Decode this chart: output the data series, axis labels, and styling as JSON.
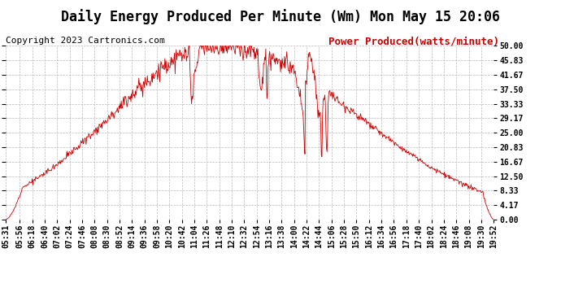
{
  "title": "Daily Energy Produced Per Minute (Wm) Mon May 15 20:06",
  "copyright": "Copyright 2023 Cartronics.com",
  "legend_label": "Power Produced(watts/minute)",
  "ymin": 0.0,
  "ymax": 50.0,
  "yticks": [
    0.0,
    4.17,
    8.33,
    12.5,
    16.67,
    20.83,
    25.0,
    29.17,
    33.33,
    37.5,
    41.67,
    45.83,
    50.0
  ],
  "line_color": "#CC0000",
  "background_color": "#FFFFFF",
  "grid_color": "#BBBBBB",
  "title_fontsize": 12,
  "copyright_fontsize": 8,
  "legend_fontsize": 9,
  "tick_fontsize": 7,
  "tick_labels": [
    "05:31",
    "05:56",
    "06:18",
    "06:40",
    "07:02",
    "07:24",
    "07:46",
    "08:08",
    "08:30",
    "08:52",
    "09:14",
    "09:36",
    "09:58",
    "10:20",
    "10:42",
    "11:04",
    "11:26",
    "11:48",
    "12:10",
    "12:32",
    "12:54",
    "13:16",
    "13:38",
    "14:00",
    "14:22",
    "14:44",
    "15:06",
    "15:28",
    "15:50",
    "16:12",
    "16:34",
    "16:56",
    "17:18",
    "17:40",
    "18:02",
    "18:24",
    "18:46",
    "19:08",
    "19:30",
    "19:52"
  ],
  "start_hhmm": "05:31",
  "end_hhmm": "19:52",
  "peak_hhmm": "11:48",
  "peak_value": 50.0,
  "noise_seed": 12
}
